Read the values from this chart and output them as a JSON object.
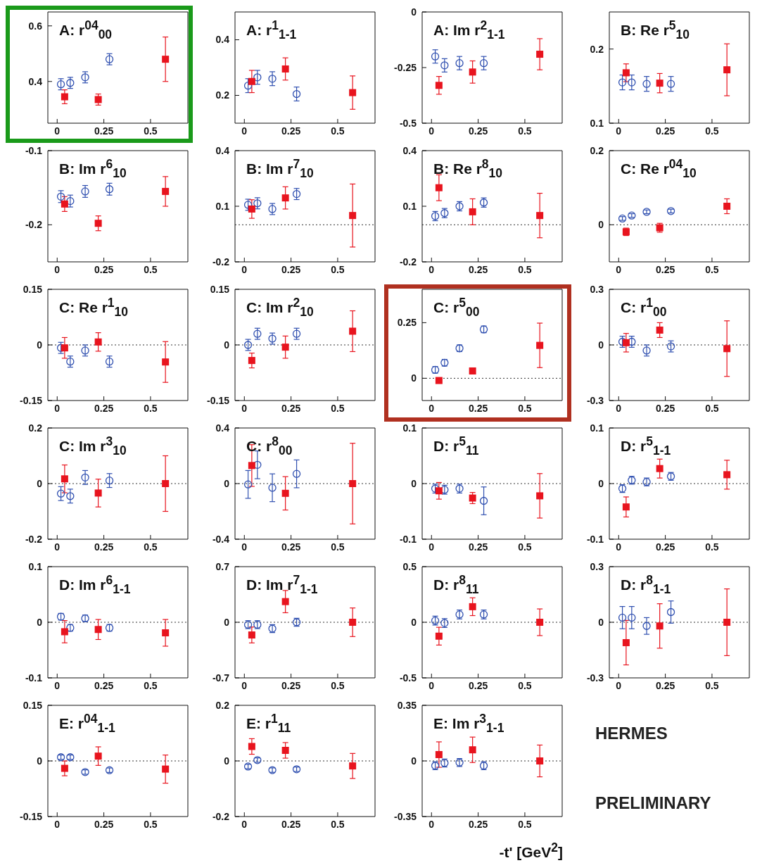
{
  "chart_data": [
    {
      "type": "scatter",
      "title": "A: r$^{04}$$_{00}$",
      "xlim": [
        -0.05,
        0.7
      ],
      "xticks": [
        0,
        0.25,
        0.5
      ],
      "ylim": [
        0.25,
        0.65
      ],
      "yticks": [
        0.4,
        0.6
      ],
      "series": [
        {
          "color": "#3050b0",
          "marker": "circle",
          "x": [
            0.02,
            0.07,
            0.15,
            0.28
          ],
          "values": [
            0.39,
            0.395,
            0.415,
            0.48
          ],
          "errors": [
            0.02,
            0.02,
            0.02,
            0.02
          ]
        },
        {
          "color": "#e8141e",
          "marker": "square",
          "x": [
            0.04,
            0.22,
            0.58
          ],
          "values": [
            0.345,
            0.335,
            0.48
          ],
          "errors": [
            0.025,
            0.02,
            0.08
          ]
        }
      ]
    },
    {
      "type": "scatter",
      "title": "A: r$^{1}$$_{1-1}$",
      "xlim": [
        -0.05,
        0.7
      ],
      "xticks": [
        0,
        0.25,
        0.5
      ],
      "ylim": [
        0.1,
        0.5
      ],
      "yticks": [
        0.2,
        0.4
      ],
      "series": [
        {
          "color": "#3050b0",
          "marker": "circle",
          "x": [
            0.02,
            0.07,
            0.15,
            0.28
          ],
          "values": [
            0.235,
            0.265,
            0.26,
            0.205
          ],
          "errors": [
            0.025,
            0.025,
            0.025,
            0.025
          ]
        },
        {
          "color": "#e8141e",
          "marker": "square",
          "x": [
            0.04,
            0.22,
            0.58
          ],
          "values": [
            0.25,
            0.295,
            0.21
          ],
          "errors": [
            0.04,
            0.04,
            0.06
          ]
        }
      ]
    },
    {
      "type": "scatter",
      "title": "A: Im r$^{2}$$_{1-1}$",
      "xlim": [
        -0.05,
        0.7
      ],
      "xticks": [
        0,
        0.25,
        0.5
      ],
      "ylim": [
        -0.5,
        0
      ],
      "yticks": [
        -0.5,
        -0.25,
        0
      ],
      "series": [
        {
          "color": "#3050b0",
          "marker": "circle",
          "x": [
            0.02,
            0.07,
            0.15,
            0.28
          ],
          "values": [
            -0.2,
            -0.24,
            -0.23,
            -0.23
          ],
          "errors": [
            0.03,
            0.03,
            0.03,
            0.03
          ]
        },
        {
          "color": "#e8141e",
          "marker": "square",
          "x": [
            0.04,
            0.22,
            0.58
          ],
          "values": [
            -0.33,
            -0.27,
            -0.19
          ],
          "errors": [
            0.04,
            0.05,
            0.07
          ]
        }
      ]
    },
    {
      "type": "scatter",
      "title": "B: Re r$^{5}$$_{10}$",
      "xlim": [
        -0.05,
        0.7
      ],
      "xticks": [
        0,
        0.25,
        0.5
      ],
      "ylim": [
        0.1,
        0.25
      ],
      "yticks": [
        0.1,
        0.2
      ],
      "series": [
        {
          "color": "#3050b0",
          "marker": "circle",
          "x": [
            0.02,
            0.07,
            0.15,
            0.28
          ],
          "values": [
            0.155,
            0.155,
            0.153,
            0.153
          ],
          "errors": [
            0.01,
            0.01,
            0.01,
            0.01
          ]
        },
        {
          "color": "#e8141e",
          "marker": "square",
          "x": [
            0.04,
            0.22,
            0.58
          ],
          "values": [
            0.168,
            0.154,
            0.172
          ],
          "errors": [
            0.012,
            0.013,
            0.035
          ]
        }
      ]
    },
    {
      "type": "scatter",
      "title": "B: Im r$^{6}$$_{10}$",
      "xlim": [
        -0.05,
        0.7
      ],
      "xticks": [
        0,
        0.25,
        0.5
      ],
      "ylim": [
        -0.25,
        -0.1
      ],
      "yticks": [
        -0.2,
        -0.1
      ],
      "series": [
        {
          "color": "#3050b0",
          "marker": "circle",
          "x": [
            0.02,
            0.07,
            0.15,
            0.28
          ],
          "values": [
            -0.162,
            -0.168,
            -0.155,
            -0.152
          ],
          "errors": [
            0.008,
            0.008,
            0.008,
            0.008
          ]
        },
        {
          "color": "#e8141e",
          "marker": "square",
          "x": [
            0.04,
            0.22,
            0.58
          ],
          "values": [
            -0.172,
            -0.198,
            -0.155
          ],
          "errors": [
            0.01,
            0.01,
            0.02
          ]
        }
      ]
    },
    {
      "type": "scatter",
      "title": "B: Im r$^{7}$$_{10}$",
      "xlim": [
        -0.05,
        0.7
      ],
      "xticks": [
        0,
        0.25,
        0.5
      ],
      "ylim": [
        -0.2,
        0.4
      ],
      "yticks": [
        -0.2,
        0.1,
        0.4
      ],
      "ref_lines": [
        {
          "axis": "y",
          "value": 0,
          "line_style": "dotted"
        }
      ],
      "series": [
        {
          "color": "#3050b0",
          "marker": "circle",
          "x": [
            0.02,
            0.07,
            0.15,
            0.28
          ],
          "values": [
            0.108,
            0.116,
            0.085,
            0.166
          ],
          "errors": [
            0.03,
            0.03,
            0.03,
            0.03
          ]
        },
        {
          "color": "#e8141e",
          "marker": "square",
          "x": [
            0.04,
            0.22,
            0.58
          ],
          "values": [
            0.085,
            0.145,
            0.05
          ],
          "errors": [
            0.05,
            0.06,
            0.17
          ]
        }
      ]
    },
    {
      "type": "scatter",
      "title": "B: Re r$^{8}$$_{10}$",
      "xlim": [
        -0.05,
        0.7
      ],
      "xticks": [
        0,
        0.25,
        0.5
      ],
      "ylim": [
        -0.2,
        0.4
      ],
      "yticks": [
        -0.2,
        0.1,
        0.4
      ],
      "ref_lines": [
        {
          "axis": "y",
          "value": 0,
          "line_style": "dotted"
        }
      ],
      "series": [
        {
          "color": "#3050b0",
          "marker": "circle",
          "x": [
            0.02,
            0.07,
            0.15,
            0.28
          ],
          "values": [
            0.047,
            0.063,
            0.1,
            0.12
          ],
          "errors": [
            0.025,
            0.025,
            0.025,
            0.025
          ]
        },
        {
          "color": "#e8141e",
          "marker": "square",
          "x": [
            0.04,
            0.22,
            0.58
          ],
          "values": [
            0.2,
            0.07,
            0.05
          ],
          "errors": [
            0.07,
            0.07,
            0.12
          ]
        }
      ]
    },
    {
      "type": "scatter",
      "title": "C: Re r$^{04}$$_{10}$",
      "xlim": [
        -0.05,
        0.7
      ],
      "xticks": [
        0,
        0.25,
        0.5
      ],
      "ylim": [
        -0.1,
        0.2
      ],
      "yticks": [
        0,
        0.2
      ],
      "ref_lines": [
        {
          "axis": "y",
          "value": 0,
          "line_style": "dotted"
        }
      ],
      "series": [
        {
          "color": "#3050b0",
          "marker": "circle",
          "x": [
            0.02,
            0.07,
            0.15,
            0.28
          ],
          "values": [
            0.017,
            0.025,
            0.035,
            0.037
          ],
          "errors": [
            0.005,
            0.005,
            0.005,
            0.005
          ]
        },
        {
          "color": "#e8141e",
          "marker": "square",
          "x": [
            0.04,
            0.22,
            0.58
          ],
          "values": [
            -0.019,
            -0.008,
            0.05
          ],
          "errors": [
            0.01,
            0.012,
            0.02
          ]
        }
      ]
    },
    {
      "type": "scatter",
      "title": "C: Re r$^{1}$$_{10}$",
      "xlim": [
        -0.05,
        0.7
      ],
      "xticks": [
        0,
        0.25,
        0.5
      ],
      "ylim": [
        -0.15,
        0.15
      ],
      "yticks": [
        -0.15,
        0,
        0.15
      ],
      "ref_lines": [
        {
          "axis": "y",
          "value": 0,
          "line_style": "dotted"
        }
      ],
      "series": [
        {
          "color": "#3050b0",
          "marker": "circle",
          "x": [
            0.02,
            0.07,
            0.15,
            0.28
          ],
          "values": [
            -0.008,
            -0.045,
            -0.015,
            -0.045
          ],
          "errors": [
            0.015,
            0.015,
            0.015,
            0.015
          ]
        },
        {
          "color": "#e8141e",
          "marker": "square",
          "x": [
            0.04,
            0.22,
            0.58
          ],
          "values": [
            -0.008,
            0.008,
            -0.046
          ],
          "errors": [
            0.028,
            0.025,
            0.055
          ]
        }
      ]
    },
    {
      "type": "scatter",
      "title": "C: Im r$^{2}$$_{10}$",
      "xlim": [
        -0.05,
        0.7
      ],
      "xticks": [
        0,
        0.25,
        0.5
      ],
      "ylim": [
        -0.15,
        0.15
      ],
      "yticks": [
        -0.15,
        0,
        0.15
      ],
      "ref_lines": [
        {
          "axis": "y",
          "value": 0,
          "line_style": "dotted"
        }
      ],
      "series": [
        {
          "color": "#3050b0",
          "marker": "circle",
          "x": [
            0.02,
            0.07,
            0.15,
            0.28
          ],
          "values": [
            0,
            0.03,
            0.017,
            0.03
          ],
          "errors": [
            0.015,
            0.015,
            0.015,
            0.015
          ]
        },
        {
          "color": "#e8141e",
          "marker": "square",
          "x": [
            0.04,
            0.22,
            0.58
          ],
          "values": [
            -0.042,
            -0.006,
            0.037
          ],
          "errors": [
            0.02,
            0.03,
            0.055
          ]
        }
      ]
    },
    {
      "type": "scatter",
      "title": "C: r$^{5}$$_{00}$",
      "xlim": [
        -0.05,
        0.7
      ],
      "xticks": [
        0,
        0.25,
        0.5
      ],
      "ylim": [
        -0.1,
        0.4
      ],
      "yticks": [
        0,
        0.25
      ],
      "ref_lines": [
        {
          "axis": "y",
          "value": 0,
          "line_style": "dotted"
        }
      ],
      "series": [
        {
          "color": "#3050b0",
          "marker": "circle",
          "x": [
            0.02,
            0.07,
            0.15,
            0.28
          ],
          "values": [
            0.038,
            0.07,
            0.135,
            0.22
          ],
          "errors": [
            0.015,
            0.015,
            0.015,
            0.015
          ]
        },
        {
          "color": "#e8141e",
          "marker": "square",
          "x": [
            0.04,
            0.22,
            0.58
          ],
          "values": [
            -0.01,
            0.033,
            0.148
          ],
          "errors": [
            0.012,
            0.012,
            0.1
          ]
        }
      ]
    },
    {
      "type": "scatter",
      "title": "C: r$^{1}$$_{00}$",
      "xlim": [
        -0.05,
        0.7
      ],
      "xticks": [
        0,
        0.25,
        0.5
      ],
      "ylim": [
        -0.3,
        0.3
      ],
      "yticks": [
        -0.3,
        0,
        0.3
      ],
      "ref_lines": [
        {
          "axis": "y",
          "value": 0,
          "line_style": "dotted"
        }
      ],
      "series": [
        {
          "color": "#3050b0",
          "marker": "circle",
          "x": [
            0.02,
            0.07,
            0.15,
            0.28
          ],
          "values": [
            0.017,
            0.017,
            -0.03,
            -0.008
          ],
          "errors": [
            0.03,
            0.03,
            0.03,
            0.03
          ]
        },
        {
          "color": "#e8141e",
          "marker": "square",
          "x": [
            0.04,
            0.22,
            0.58
          ],
          "values": [
            0.012,
            0.08,
            -0.02
          ],
          "errors": [
            0.05,
            0.04,
            0.15
          ]
        }
      ]
    },
    {
      "type": "scatter",
      "title": "C: Im r$^{3}$$_{10}$",
      "xlim": [
        -0.05,
        0.7
      ],
      "xticks": [
        0,
        0.25,
        0.5
      ],
      "ylim": [
        -0.2,
        0.2
      ],
      "yticks": [
        -0.2,
        0,
        0.2
      ],
      "ref_lines": [
        {
          "axis": "y",
          "value": 0,
          "line_style": "dotted"
        }
      ],
      "series": [
        {
          "color": "#3050b0",
          "marker": "circle",
          "x": [
            0.02,
            0.07,
            0.15,
            0.28
          ],
          "values": [
            -0.036,
            -0.045,
            0.022,
            0.011
          ],
          "errors": [
            0.025,
            0.025,
            0.025,
            0.025
          ]
        },
        {
          "color": "#e8141e",
          "marker": "square",
          "x": [
            0.04,
            0.22,
            0.58
          ],
          "values": [
            0.017,
            -0.034,
            0
          ],
          "errors": [
            0.05,
            0.05,
            0.1
          ]
        }
      ]
    },
    {
      "type": "scatter",
      "title": "C: r$^{8}$$_{00}$",
      "xlim": [
        -0.05,
        0.7
      ],
      "xticks": [
        0,
        0.25,
        0.5
      ],
      "ylim": [
        -0.4,
        0.4
      ],
      "yticks": [
        -0.4,
        0,
        0.4
      ],
      "ref_lines": [
        {
          "axis": "y",
          "value": 0,
          "line_style": "dotted"
        }
      ],
      "series": [
        {
          "color": "#3050b0",
          "marker": "circle",
          "x": [
            0.02,
            0.07,
            0.15,
            0.28
          ],
          "values": [
            -0.006,
            0.135,
            -0.03,
            0.07
          ],
          "errors": [
            0.1,
            0.1,
            0.1,
            0.1
          ]
        },
        {
          "color": "#e8141e",
          "marker": "square",
          "x": [
            0.04,
            0.22,
            0.58
          ],
          "values": [
            0.13,
            -0.07,
            0
          ],
          "errors": [
            0.15,
            0.12,
            0.29
          ]
        }
      ]
    },
    {
      "type": "scatter",
      "title": "D: r$^{5}$$_{11}$",
      "xlim": [
        -0.05,
        0.7
      ],
      "xticks": [
        0,
        0.25,
        0.5
      ],
      "ylim": [
        -0.1,
        0.1
      ],
      "yticks": [
        -0.1,
        0,
        0.1
      ],
      "ref_lines": [
        {
          "axis": "y",
          "value": 0,
          "line_style": "dotted"
        }
      ],
      "series": [
        {
          "color": "#3050b0",
          "marker": "circle",
          "x": [
            0.02,
            0.07,
            0.15,
            0.28
          ],
          "values": [
            -0.009,
            -0.011,
            -0.009,
            -0.031
          ],
          "errors": [
            0.008,
            0.008,
            0.008,
            0.025
          ]
        },
        {
          "color": "#e8141e",
          "marker": "square",
          "x": [
            0.04,
            0.22,
            0.58
          ],
          "values": [
            -0.013,
            -0.026,
            -0.022
          ],
          "errors": [
            0.015,
            0.01,
            0.04
          ]
        }
      ]
    },
    {
      "type": "scatter",
      "title": "D: r$^{5}$$_{1-1}$",
      "xlim": [
        -0.05,
        0.7
      ],
      "xticks": [
        0,
        0.25,
        0.5
      ],
      "ylim": [
        -0.1,
        0.1
      ],
      "yticks": [
        -0.1,
        0,
        0.1
      ],
      "ref_lines": [
        {
          "axis": "y",
          "value": 0,
          "line_style": "dotted"
        }
      ],
      "series": [
        {
          "color": "#3050b0",
          "marker": "circle",
          "x": [
            0.02,
            0.07,
            0.15,
            0.28
          ],
          "values": [
            -0.009,
            0.006,
            0.003,
            0.013
          ],
          "errors": [
            0.007,
            0.007,
            0.007,
            0.007
          ]
        },
        {
          "color": "#e8141e",
          "marker": "square",
          "x": [
            0.04,
            0.22,
            0.58
          ],
          "values": [
            -0.042,
            0.027,
            0.016
          ],
          "errors": [
            0.018,
            0.017,
            0.026
          ]
        }
      ]
    },
    {
      "type": "scatter",
      "title": "D: Im r$^{6}$$_{1-1}$",
      "xlim": [
        -0.05,
        0.7
      ],
      "xticks": [
        0,
        0.25,
        0.5
      ],
      "ylim": [
        -0.1,
        0.1
      ],
      "yticks": [
        -0.1,
        0,
        0.1
      ],
      "ref_lines": [
        {
          "axis": "y",
          "value": 0,
          "line_style": "dotted"
        }
      ],
      "series": [
        {
          "color": "#3050b0",
          "marker": "circle",
          "x": [
            0.02,
            0.07,
            0.15,
            0.28
          ],
          "values": [
            0.01,
            -0.01,
            0.007,
            -0.01
          ],
          "errors": [
            0.006,
            0.006,
            0.006,
            0.006
          ]
        },
        {
          "color": "#e8141e",
          "marker": "square",
          "x": [
            0.04,
            0.22,
            0.58
          ],
          "values": [
            -0.017,
            -0.013,
            -0.019
          ],
          "errors": [
            0.02,
            0.018,
            0.024
          ]
        }
      ]
    },
    {
      "type": "scatter",
      "title": "D: Im r$^{7}$$_{1-1}$",
      "xlim": [
        -0.05,
        0.7
      ],
      "xticks": [
        0,
        0.25,
        0.5
      ],
      "ylim": [
        -0.7,
        0.7
      ],
      "yticks": [
        -0.7,
        0,
        0.7
      ],
      "ref_lines": [
        {
          "axis": "y",
          "value": 0,
          "line_style": "dotted"
        }
      ],
      "series": [
        {
          "color": "#3050b0",
          "marker": "circle",
          "x": [
            0.02,
            0.07,
            0.15,
            0.28
          ],
          "values": [
            -0.03,
            -0.03,
            -0.08,
            0
          ],
          "errors": [
            0.05,
            0.05,
            0.05,
            0.05
          ]
        },
        {
          "color": "#e8141e",
          "marker": "square",
          "x": [
            0.04,
            0.22,
            0.58
          ],
          "values": [
            -0.16,
            0.26,
            0
          ],
          "errors": [
            0.1,
            0.14,
            0.18
          ]
        }
      ]
    },
    {
      "type": "scatter",
      "title": "D: r$^{8}$$_{11}$",
      "xlim": [
        -0.05,
        0.7
      ],
      "xticks": [
        0,
        0.25,
        0.5
      ],
      "ylim": [
        -0.5,
        0.5
      ],
      "yticks": [
        -0.5,
        0,
        0.5
      ],
      "ref_lines": [
        {
          "axis": "y",
          "value": 0,
          "line_style": "dotted"
        }
      ],
      "series": [
        {
          "color": "#3050b0",
          "marker": "circle",
          "x": [
            0.02,
            0.07,
            0.15,
            0.28
          ],
          "values": [
            0.015,
            -0.007,
            0.07,
            0.07
          ],
          "errors": [
            0.04,
            0.04,
            0.04,
            0.04
          ]
        },
        {
          "color": "#e8141e",
          "marker": "square",
          "x": [
            0.04,
            0.22,
            0.58
          ],
          "values": [
            -0.125,
            0.14,
            0
          ],
          "errors": [
            0.08,
            0.08,
            0.12
          ]
        }
      ]
    },
    {
      "type": "scatter",
      "title": "D: r$^{8}$$_{1-1}$",
      "xlim": [
        -0.05,
        0.7
      ],
      "xticks": [
        0,
        0.25,
        0.5
      ],
      "ylim": [
        -0.3,
        0.3
      ],
      "yticks": [
        -0.3,
        0,
        0.3
      ],
      "ref_lines": [
        {
          "axis": "y",
          "value": 0,
          "line_style": "dotted"
        }
      ],
      "series": [
        {
          "color": "#3050b0",
          "marker": "circle",
          "x": [
            0.02,
            0.07,
            0.15,
            0.28
          ],
          "values": [
            0.025,
            0.025,
            -0.02,
            0.055
          ],
          "errors": [
            0.06,
            0.06,
            0.045,
            0.06
          ]
        },
        {
          "color": "#e8141e",
          "marker": "square",
          "x": [
            0.04,
            0.22,
            0.58
          ],
          "values": [
            -0.11,
            -0.02,
            0
          ],
          "errors": [
            0.12,
            0.12,
            0.18
          ]
        }
      ]
    },
    {
      "type": "scatter",
      "title": "E: r$^{04}$$_{1-1}$",
      "xlim": [
        -0.05,
        0.7
      ],
      "xticks": [
        0,
        0.25,
        0.5
      ],
      "ylim": [
        -0.15,
        0.15
      ],
      "yticks": [
        -0.15,
        0,
        0.15
      ],
      "ref_lines": [
        {
          "axis": "y",
          "value": 0,
          "line_style": "dotted"
        }
      ],
      "series": [
        {
          "color": "#3050b0",
          "marker": "circle",
          "x": [
            0.02,
            0.07,
            0.15,
            0.28
          ],
          "values": [
            0.01,
            0.01,
            -0.03,
            -0.025
          ],
          "errors": [
            0.006,
            0.006,
            0.006,
            0.006
          ]
        },
        {
          "color": "#e8141e",
          "marker": "square",
          "x": [
            0.04,
            0.22,
            0.58
          ],
          "values": [
            -0.02,
            0.013,
            -0.022
          ],
          "errors": [
            0.02,
            0.025,
            0.038
          ]
        }
      ]
    },
    {
      "type": "scatter",
      "title": "E: r$^{1}$$_{11}$",
      "xlim": [
        -0.05,
        0.7
      ],
      "xticks": [
        0,
        0.25,
        0.5
      ],
      "ylim": [
        -0.2,
        0.2
      ],
      "yticks": [
        -0.2,
        0,
        0.2
      ],
      "ref_lines": [
        {
          "axis": "y",
          "value": 0,
          "line_style": "dotted"
        }
      ],
      "series": [
        {
          "color": "#3050b0",
          "marker": "circle",
          "x": [
            0.02,
            0.07,
            0.15,
            0.28
          ],
          "values": [
            -0.02,
            0.003,
            -0.033,
            -0.03
          ],
          "errors": [
            0.008,
            0.008,
            0.008,
            0.008
          ]
        },
        {
          "color": "#e8141e",
          "marker": "square",
          "x": [
            0.04,
            0.22,
            0.58
          ],
          "values": [
            0.052,
            0.038,
            -0.018
          ],
          "errors": [
            0.028,
            0.028,
            0.045
          ]
        }
      ]
    },
    {
      "type": "scatter",
      "title": "E: Im r$^{3}$$_{1-1}$",
      "xlabel": "-t' [GeV$^{2}$]",
      "xlim": [
        -0.05,
        0.7
      ],
      "xticks": [
        0,
        0.25,
        0.5
      ],
      "ylim": [
        -0.35,
        0.35
      ],
      "yticks": [
        -0.35,
        0,
        0.35
      ],
      "ref_lines": [
        {
          "axis": "y",
          "value": 0,
          "line_style": "dotted"
        }
      ],
      "series": [
        {
          "color": "#3050b0",
          "marker": "circle",
          "x": [
            0.02,
            0.07,
            0.15,
            0.28
          ],
          "values": [
            -0.03,
            -0.013,
            -0.01,
            -0.03
          ],
          "errors": [
            0.025,
            0.025,
            0.025,
            0.025
          ]
        },
        {
          "color": "#e8141e",
          "marker": "square",
          "x": [
            0.04,
            0.22,
            0.58
          ],
          "values": [
            0.04,
            0.07,
            0
          ],
          "errors": [
            0.08,
            0.08,
            0.1
          ]
        }
      ]
    },
    {
      "type": "other",
      "annotations": [
        "HERMES",
        "PRELIMINARY"
      ]
    }
  ]
}
